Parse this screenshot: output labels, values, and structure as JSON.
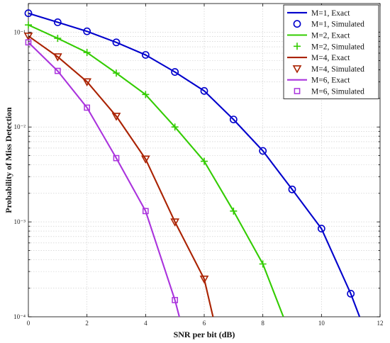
{
  "chart_data": {
    "type": "line",
    "title": "",
    "xlabel": "SNR per bit (dB)",
    "ylabel": "Probability of Miss Detection",
    "xlim": [
      0,
      12
    ],
    "ylim": [
      0.0001,
      0.2
    ],
    "yscale": "log",
    "grid": true,
    "legend_position": "top-right",
    "x_ticks": [
      0,
      2,
      4,
      6,
      8,
      10,
      12
    ],
    "x_tick_labels": [
      "0",
      "2",
      "4",
      "6",
      "8",
      "10",
      "12"
    ],
    "y_ticks": [
      0.1,
      0.01,
      0.001,
      0.0001
    ],
    "y_tick_labels": [
      "10⁻¹",
      "10⁻²",
      "10⁻³",
      "10⁻⁴"
    ],
    "series": [
      {
        "name": "M=1, Exact",
        "color": "#0000cc",
        "style": "line",
        "x": [
          0,
          1,
          2,
          3,
          4,
          5,
          6,
          7,
          8,
          9,
          10,
          11,
          11.3
        ],
        "y": [
          0.158,
          0.127,
          0.102,
          0.078,
          0.0575,
          0.038,
          0.024,
          0.012,
          0.0056,
          0.0022,
          0.00085,
          0.000175,
          0.0001
        ]
      },
      {
        "name": "M=1, Simulated",
        "color": "#0000cc",
        "style": "marker",
        "marker": "circle",
        "x": [
          0,
          1,
          2,
          3,
          4,
          5,
          6,
          7,
          8,
          9,
          10,
          11
        ],
        "y": [
          0.158,
          0.127,
          0.102,
          0.078,
          0.0575,
          0.038,
          0.024,
          0.012,
          0.0056,
          0.0022,
          0.00085,
          0.000175
        ]
      },
      {
        "name": "M=2, Exact",
        "color": "#33cc00",
        "style": "line",
        "x": [
          0,
          1,
          2,
          3,
          4,
          5,
          6,
          7,
          8,
          8.7
        ],
        "y": [
          0.119,
          0.086,
          0.061,
          0.037,
          0.022,
          0.01,
          0.00435,
          0.0013,
          0.00036,
          0.0001
        ]
      },
      {
        "name": "M=2, Simulated",
        "color": "#33cc00",
        "style": "marker",
        "marker": "plus",
        "x": [
          0,
          1,
          2,
          3,
          4,
          5,
          6,
          7,
          8
        ],
        "y": [
          0.119,
          0.086,
          0.061,
          0.037,
          0.022,
          0.01,
          0.00435,
          0.0013,
          0.00036
        ]
      },
      {
        "name": "M=4, Exact",
        "color": "#aa2200",
        "style": "line",
        "x": [
          0,
          1,
          2,
          3,
          4,
          5,
          6,
          6.3
        ],
        "y": [
          0.091,
          0.055,
          0.03,
          0.013,
          0.0046,
          0.001,
          0.00025,
          0.0001
        ]
      },
      {
        "name": "M=4, Simulated",
        "color": "#aa2200",
        "style": "marker",
        "marker": "triangle-down",
        "x": [
          0,
          1,
          2,
          3,
          4,
          5,
          6
        ],
        "y": [
          0.091,
          0.055,
          0.03,
          0.013,
          0.0046,
          0.001,
          0.00025
        ]
      },
      {
        "name": "M=6, Exact",
        "color": "#aa33dd",
        "style": "line",
        "x": [
          0,
          1,
          2,
          3,
          4,
          5,
          5.15
        ],
        "y": [
          0.078,
          0.039,
          0.016,
          0.0047,
          0.0013,
          0.00015,
          0.0001
        ]
      },
      {
        "name": "M=6, Simulated",
        "color": "#aa33dd",
        "style": "marker",
        "marker": "square",
        "x": [
          0,
          1,
          2,
          3,
          4,
          5
        ],
        "y": [
          0.078,
          0.039,
          0.016,
          0.0047,
          0.0013,
          0.00015
        ]
      }
    ]
  }
}
